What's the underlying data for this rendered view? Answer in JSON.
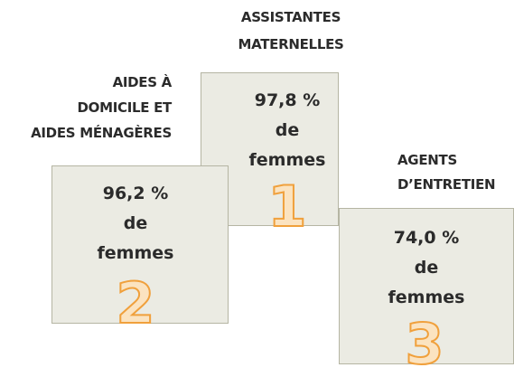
{
  "podium": [
    {
      "label": [
        "ASSISTANTES",
        "MATERNELLES"
      ],
      "value": "97,8 %",
      "text": [
        "de",
        "femmes"
      ],
      "rank": "1"
    },
    {
      "label": [
        "AIDES À",
        "DOMICILE ET",
        "AIDES MÉNAGÈRES"
      ],
      "value": "96,2 %",
      "text": [
        "de",
        "femmes"
      ],
      "rank": "2"
    },
    {
      "label": [
        "AGENTS",
        "D’ENTRETIEN"
      ],
      "value": "74,0 %",
      "text": [
        "de",
        "femmes"
      ],
      "rank": "3"
    }
  ]
}
